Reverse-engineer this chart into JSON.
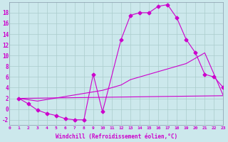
{
  "background_color": "#cce8ec",
  "grid_color": "#aacccc",
  "line_color": "#cc00cc",
  "xlabel": "Windchill (Refroidissement éolien,°C)",
  "xlim": [
    0,
    23
  ],
  "ylim": [
    -3,
    20
  ],
  "ytick_values": [
    -2,
    0,
    2,
    4,
    6,
    8,
    10,
    12,
    14,
    16,
    18
  ],
  "series": [
    {
      "x": [
        1,
        2,
        3,
        4,
        5,
        6,
        7,
        8,
        9,
        10,
        12,
        13,
        14,
        15,
        16,
        17,
        18,
        19,
        20,
        21,
        22,
        23
      ],
      "y": [
        2,
        1,
        -0.2,
        -0.8,
        -1.2,
        -1.8,
        -2,
        -2,
        6.5,
        -0.5,
        13,
        17.5,
        18,
        18,
        19.2,
        19.5,
        17,
        13,
        10.5,
        6.5,
        6,
        4
      ],
      "marker": true
    },
    {
      "x": [
        1,
        3,
        10,
        12,
        13,
        14,
        15,
        16,
        17,
        18,
        19,
        20,
        21,
        22,
        23
      ],
      "y": [
        2,
        1.5,
        3.5,
        4.5,
        5.5,
        6,
        6.5,
        7,
        7.5,
        8,
        8.5,
        9.5,
        10.5,
        6.5,
        2.5
      ],
      "marker": false
    },
    {
      "x": [
        1,
        23
      ],
      "y": [
        2,
        2.5
      ],
      "marker": false
    }
  ]
}
